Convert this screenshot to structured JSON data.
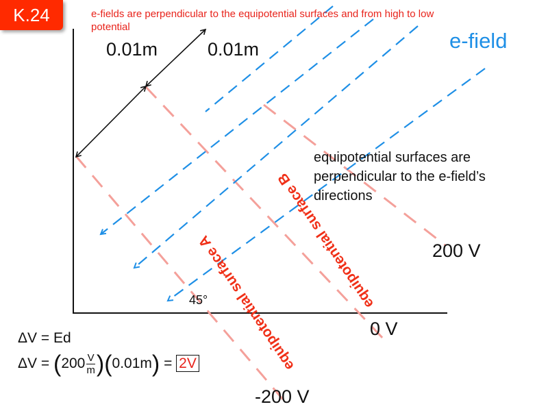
{
  "slide_id": "K.24",
  "note": "e-fields are perpendicular to the equipotential surfaces and from high to low potential",
  "spacing_labels": [
    "0.01m",
    "0.01m"
  ],
  "efield_label": "e-field",
  "equip_description": "equipotential surfaces are perpendicular to the e-field’s directions",
  "surface_labels": {
    "a": "equipotential surface A",
    "b": "equipotential surface B"
  },
  "potentials": {
    "high": "200 V",
    "zero": "0 V",
    "low": "-200 V"
  },
  "angle": "45°",
  "equations": {
    "line1": "ΔV = Ed",
    "line2_prefix": "ΔV =",
    "field_value": "200",
    "unit_num": "V",
    "unit_den": "m",
    "distance": "0.01m",
    "equals": "=",
    "result": "2V"
  },
  "colors": {
    "badge": "#ff2a00",
    "note": "#e8231b",
    "field": "#1e8fe6",
    "equipotential": "#f4a09a",
    "label": "#f03018"
  }
}
